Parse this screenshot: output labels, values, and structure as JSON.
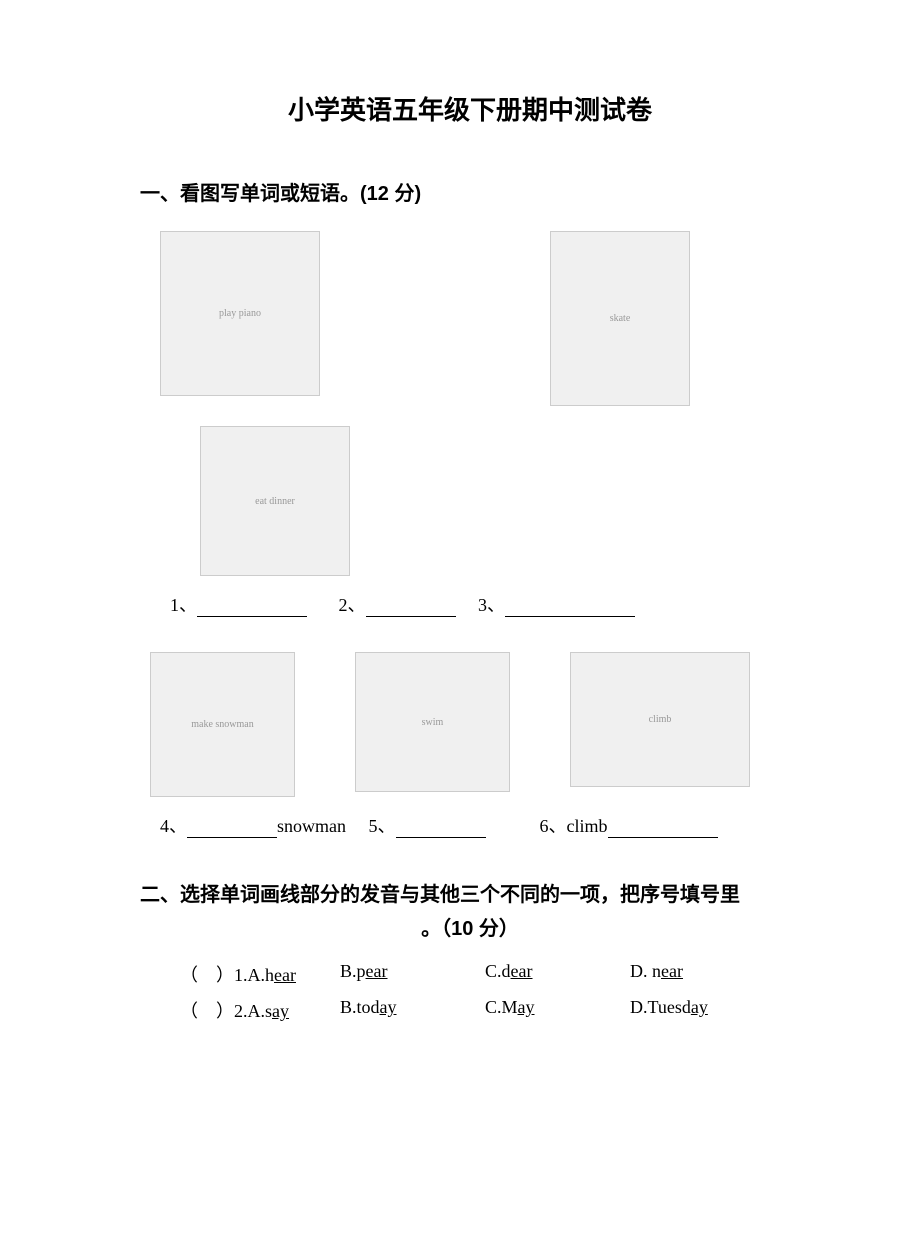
{
  "title": "小学英语五年级下册期中测试卷",
  "section1": {
    "header": "一、看图写单词或短语。(12 分)",
    "images": {
      "piano_alt": "play piano",
      "skate_alt": "skate",
      "dinner_alt": "eat dinner",
      "snowman_alt": "make snowman",
      "swim_alt": "swim",
      "climb_alt": "climb"
    },
    "answers_row1": {
      "q1": "1",
      "sep1": "、",
      "q2": "2",
      "sep2": "、",
      "q3": "3",
      "sep3": "、"
    },
    "answers_row2": {
      "q4": "4",
      "sep4": "、",
      "word4": "snowman",
      "q5": "5",
      "sep5": "、",
      "q6": "6",
      "sep6": "、",
      "word6": "climb"
    }
  },
  "section2": {
    "header": "二、选择单词画线部分的发音与其他三个不同的一项，把序号填号里",
    "subheader": "。（10 分）",
    "questions": [
      {
        "prefix": "（　）1.A.h",
        "a_ul": "ear",
        "b_pre": "B.p",
        "b_ul": "ear",
        "c_pre": "C.d",
        "c_ul": "ear",
        "d_pre": "D. n",
        "d_ul": "ear"
      },
      {
        "prefix": "（　）2.A.s",
        "a_ul": "ay",
        "b_pre": "B.tod",
        "b_ul": "ay",
        "c_pre": "C.M",
        "c_ul": "ay",
        "d_pre": "D.Tuesd",
        "d_ul": "ay"
      }
    ]
  }
}
